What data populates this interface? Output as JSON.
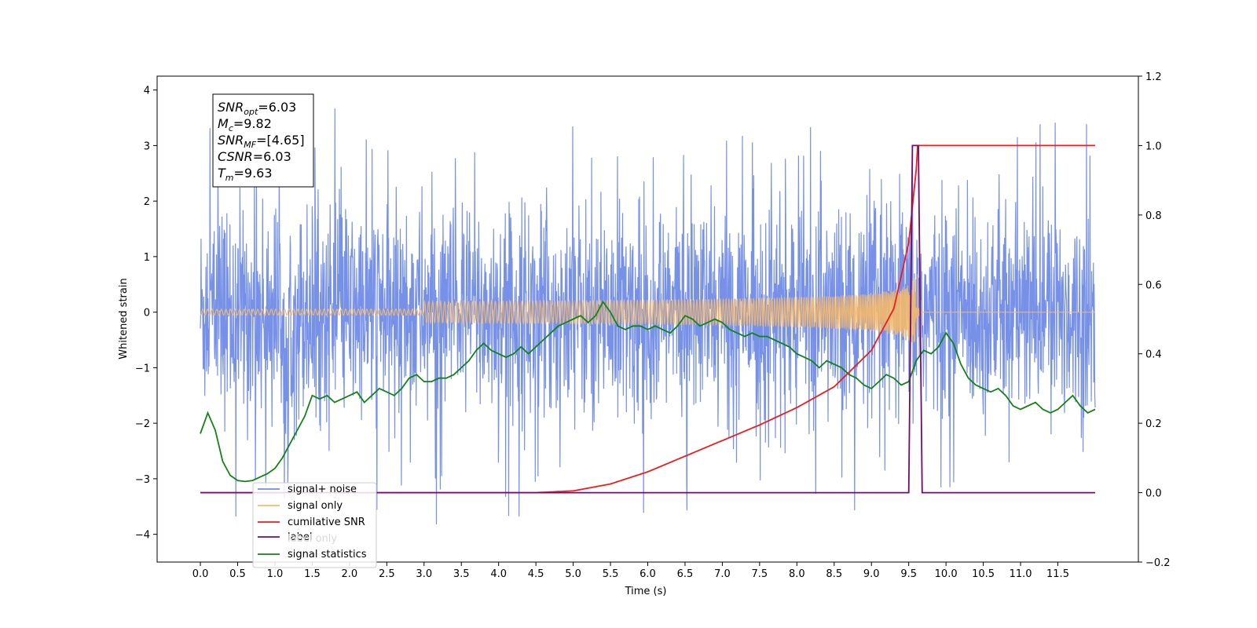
{
  "chart_data": {
    "type": "line",
    "xlabel": "Time (s)",
    "ylabel": "Whitened strain",
    "xlim": [
      -0.58,
      12.58
    ],
    "ylim_left": [
      -4.5,
      4.25
    ],
    "ylim_right": [
      -0.2,
      1.2
    ],
    "x_ticks": [
      0.0,
      0.5,
      1.0,
      1.5,
      2.0,
      2.5,
      3.0,
      3.5,
      4.0,
      4.5,
      5.0,
      5.5,
      6.0,
      6.5,
      7.0,
      7.5,
      8.0,
      8.5,
      9.0,
      9.5,
      10.0,
      10.5,
      11.0,
      11.5
    ],
    "x_tick_labels": [
      "0.0",
      "0.5",
      "1.0",
      "1.5",
      "2.0",
      "2.5",
      "3.0",
      "3.5",
      "4.0",
      "4.5",
      "5.0",
      "5.5",
      "6.0",
      "6.5",
      "7.0",
      "7.5",
      "8.0",
      "8.5",
      "9.0",
      "9.5",
      "10.0",
      "10.5",
      "11.0",
      "11.5"
    ],
    "y_ticks_left": [
      4,
      3,
      2,
      1,
      0,
      -1,
      -2,
      -3,
      -4
    ],
    "y_tick_labels_left": [
      "4",
      "3",
      "2",
      "1",
      "0",
      "−1",
      "−2",
      "−3",
      "−4"
    ],
    "y_ticks_right": [
      1.2,
      1.0,
      0.8,
      0.6,
      0.4,
      0.2,
      0.0,
      -0.2
    ],
    "y_tick_labels_right": [
      "1.2",
      "1.0",
      "0.8",
      "0.6",
      "0.4",
      "0.2",
      "0.0",
      "−0.2"
    ],
    "grid": false,
    "legend_position": "lower-left",
    "info_box": {
      "lines": [
        {
          "main": "SNR",
          "sub": "opt",
          "value": "=6.03"
        },
        {
          "main": "M",
          "sub": "c",
          "value": "=9.82"
        },
        {
          "main": "SNR",
          "sub": "MF",
          "value": "=[4.65]"
        },
        {
          "main": "CSNR",
          "sub": "",
          "value": "=6.03"
        },
        {
          "main": "T",
          "sub": "m",
          "value": "=9.63"
        }
      ]
    },
    "series": [
      {
        "name": "signal+ noise",
        "color": "#6f8be6",
        "axis": "left",
        "x_range": [
          0.0,
          12.0
        ],
        "envelope": [
          -2.4,
          2.4
        ],
        "extremes_min": -3.95,
        "extremes_max": 3.85
      },
      {
        "name": "signal only",
        "color": "#f5b96b",
        "axis": "left",
        "t_merger": 9.62,
        "peak_amplitude": 0.82
      },
      {
        "name": "cumilative SNR",
        "color": "#ee1c1c",
        "axis": "right",
        "x": [
          0.0,
          4.5,
          5.0,
          5.5,
          6.0,
          6.5,
          7.0,
          7.5,
          8.0,
          8.5,
          9.0,
          9.3,
          9.5,
          9.6,
          9.62,
          12.0
        ],
        "y": [
          0.0,
          0.0,
          0.005,
          0.025,
          0.06,
          0.105,
          0.15,
          0.195,
          0.245,
          0.305,
          0.41,
          0.53,
          0.72,
          0.93,
          1.0,
          1.0
        ]
      },
      {
        "name": "label",
        "color": "#6e0d6e",
        "axis": "right",
        "x": [
          0.0,
          9.5,
          9.55,
          9.63,
          9.68,
          12.0
        ],
        "y": [
          0.0,
          0.0,
          1.0,
          1.0,
          0.0,
          0.0
        ]
      },
      {
        "name": "label only",
        "color": "#d5a8d5",
        "axis": "right",
        "hidden": true
      },
      {
        "name": "signal statistics",
        "color": "#148214",
        "axis": "right",
        "x": [
          0.0,
          0.1,
          0.2,
          0.3,
          0.4,
          0.5,
          0.6,
          0.7,
          0.8,
          0.9,
          1.0,
          1.1,
          1.2,
          1.3,
          1.4,
          1.5,
          1.6,
          1.7,
          1.8,
          1.9,
          2.0,
          2.1,
          2.2,
          2.3,
          2.4,
          2.5,
          2.6,
          2.7,
          2.8,
          2.9,
          3.0,
          3.1,
          3.2,
          3.3,
          3.4,
          3.5,
          3.6,
          3.7,
          3.8,
          3.9,
          4.0,
          4.1,
          4.2,
          4.3,
          4.4,
          4.5,
          4.6,
          4.7,
          4.8,
          4.9,
          5.0,
          5.1,
          5.2,
          5.3,
          5.4,
          5.5,
          5.6,
          5.7,
          5.8,
          5.9,
          6.0,
          6.1,
          6.2,
          6.3,
          6.4,
          6.5,
          6.6,
          6.7,
          6.8,
          6.9,
          7.0,
          7.1,
          7.2,
          7.3,
          7.4,
          7.5,
          7.6,
          7.7,
          7.8,
          7.9,
          8.0,
          8.1,
          8.2,
          8.3,
          8.4,
          8.5,
          8.6,
          8.7,
          8.8,
          8.9,
          9.0,
          9.1,
          9.2,
          9.3,
          9.4,
          9.5,
          9.6,
          9.7,
          9.8,
          9.9,
          10.0,
          10.1,
          10.2,
          10.3,
          10.4,
          10.5,
          10.6,
          10.7,
          10.8,
          10.9,
          11.0,
          11.1,
          11.2,
          11.3,
          11.4,
          11.5,
          11.6,
          11.7,
          11.8,
          11.9,
          12.0
        ],
        "y": [
          0.17,
          0.23,
          0.18,
          0.09,
          0.05,
          0.035,
          0.032,
          0.035,
          0.045,
          0.055,
          0.07,
          0.1,
          0.14,
          0.18,
          0.22,
          0.28,
          0.27,
          0.28,
          0.26,
          0.27,
          0.28,
          0.29,
          0.26,
          0.28,
          0.3,
          0.29,
          0.28,
          0.3,
          0.33,
          0.34,
          0.32,
          0.32,
          0.33,
          0.33,
          0.34,
          0.36,
          0.38,
          0.41,
          0.43,
          0.41,
          0.4,
          0.39,
          0.4,
          0.42,
          0.4,
          0.42,
          0.44,
          0.46,
          0.48,
          0.49,
          0.5,
          0.51,
          0.49,
          0.51,
          0.55,
          0.52,
          0.48,
          0.47,
          0.48,
          0.48,
          0.47,
          0.48,
          0.47,
          0.46,
          0.48,
          0.51,
          0.5,
          0.48,
          0.49,
          0.5,
          0.49,
          0.47,
          0.46,
          0.45,
          0.46,
          0.45,
          0.45,
          0.44,
          0.43,
          0.42,
          0.4,
          0.39,
          0.38,
          0.36,
          0.38,
          0.37,
          0.36,
          0.34,
          0.33,
          0.31,
          0.3,
          0.32,
          0.34,
          0.33,
          0.31,
          0.32,
          0.38,
          0.41,
          0.4,
          0.42,
          0.46,
          0.43,
          0.37,
          0.33,
          0.31,
          0.3,
          0.29,
          0.3,
          0.28,
          0.25,
          0.24,
          0.25,
          0.26,
          0.24,
          0.23,
          0.24,
          0.26,
          0.28,
          0.25,
          0.23,
          0.24
        ]
      }
    ]
  }
}
